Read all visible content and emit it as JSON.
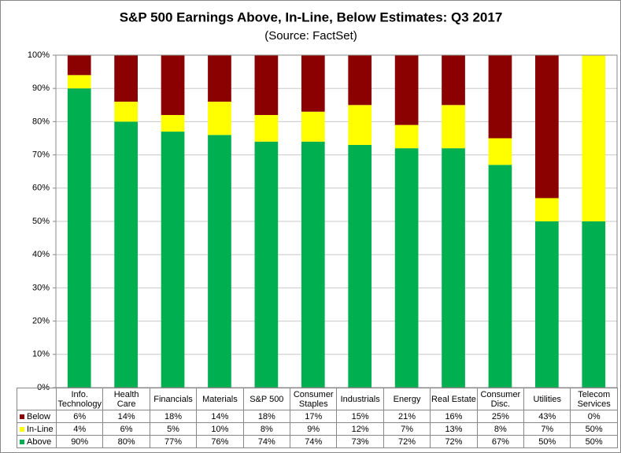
{
  "chart_data": {
    "type": "stacked_bar",
    "title": "S&P 500 Earnings Above, In-Line, Below Estimates: Q3 2017",
    "subtitle": "(Source: FactSet)",
    "categories": [
      "Info.\nTechnology",
      "Health Care",
      "Financials",
      "Materials",
      "S&P 500",
      "Consumer\nStaples",
      "Industrials",
      "Energy",
      "Real Estate",
      "Consumer\nDisc.",
      "Utilities",
      "Telecom\nServices"
    ],
    "series": [
      {
        "name": "Above",
        "color": "#00b050",
        "values": [
          90,
          80,
          77,
          76,
          74,
          74,
          73,
          72,
          72,
          67,
          50,
          50
        ],
        "value_labels": [
          "90%",
          "80%",
          "77%",
          "76%",
          "74%",
          "74%",
          "73%",
          "72%",
          "72%",
          "67%",
          "50%",
          "50%"
        ]
      },
      {
        "name": "In-Line",
        "color": "#ffff00",
        "values": [
          4,
          6,
          5,
          10,
          8,
          9,
          12,
          7,
          13,
          8,
          7,
          50
        ],
        "value_labels": [
          "4%",
          "6%",
          "5%",
          "10%",
          "8%",
          "9%",
          "12%",
          "7%",
          "13%",
          "8%",
          "7%",
          "50%"
        ]
      },
      {
        "name": "Below",
        "color": "#8b0000",
        "values": [
          6,
          14,
          18,
          14,
          18,
          17,
          15,
          21,
          16,
          25,
          43,
          0
        ],
        "value_labels": [
          "6%",
          "14%",
          "18%",
          "14%",
          "18%",
          "17%",
          "15%",
          "21%",
          "16%",
          "25%",
          "43%",
          "0%"
        ]
      }
    ],
    "ylim": [
      0,
      100
    ],
    "yticks": [
      {
        "value": 0,
        "label": "0%"
      },
      {
        "value": 10,
        "label": "10%"
      },
      {
        "value": 20,
        "label": "20%"
      },
      {
        "value": 30,
        "label": "30%"
      },
      {
        "value": 40,
        "label": "40%"
      },
      {
        "value": 50,
        "label": "50%"
      },
      {
        "value": 60,
        "label": "60%"
      },
      {
        "value": 70,
        "label": "70%"
      },
      {
        "value": 80,
        "label": "80%"
      },
      {
        "value": 90,
        "label": "90%"
      },
      {
        "value": 100,
        "label": "100%"
      }
    ],
    "grid": true
  }
}
